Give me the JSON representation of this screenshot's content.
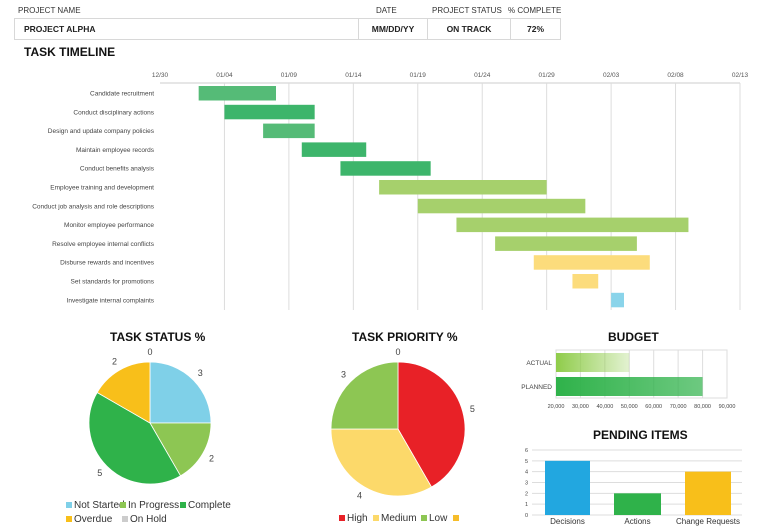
{
  "header": {
    "labels": {
      "name": "PROJECT NAME",
      "date": "DATE",
      "status": "PROJECT STATUS",
      "complete": "% COMPLETE"
    },
    "values": {
      "name": "PROJECT ALPHA",
      "date": "MM/DD/YY",
      "status": "ON TRACK",
      "complete": "72%"
    }
  },
  "chart_data": [
    {
      "type": "gantt",
      "title": "TASK TIMELINE",
      "x_ticks": [
        "12/30",
        "01/04",
        "01/09",
        "01/14",
        "01/19",
        "01/24",
        "01/29",
        "02/03",
        "02/08",
        "02/13"
      ],
      "x_range": [
        "12/30",
        "02/13"
      ],
      "grid": true,
      "tasks": [
        {
          "name": "Candidate recruitment",
          "start": "01/02",
          "end": "01/08",
          "color": "#55bb77"
        },
        {
          "name": "Conduct disciplinary actions",
          "start": "01/04",
          "end": "01/11",
          "color": "#3db56b"
        },
        {
          "name": "Design and update company policies",
          "start": "01/07",
          "end": "01/11",
          "color": "#55bb77"
        },
        {
          "name": "Maintain employee records",
          "start": "01/10",
          "end": "01/15",
          "color": "#3db56b"
        },
        {
          "name": "Conduct benefits analysis",
          "start": "01/13",
          "end": "01/20",
          "color": "#3db56b"
        },
        {
          "name": "Employee training and development",
          "start": "01/16",
          "end": "01/29",
          "color": "#a6d06c"
        },
        {
          "name": "Conduct job analysis and role descriptions",
          "start": "01/19",
          "end": "02/01",
          "color": "#a6d06c"
        },
        {
          "name": "Monitor employee performance",
          "start": "01/22",
          "end": "02/09",
          "color": "#a6d06c"
        },
        {
          "name": "Resolve employee internal conflicts",
          "start": "01/25",
          "end": "02/05",
          "color": "#a6d06c"
        },
        {
          "name": "Disburse rewards and incentives",
          "start": "01/28",
          "end": "02/06",
          "color": "#fcdc7c"
        },
        {
          "name": "Set standards for promotions",
          "start": "01/31",
          "end": "02/02",
          "color": "#fcdc7c"
        },
        {
          "name": "Investigate internal complaints",
          "start": "02/03",
          "end": "02/04",
          "color": "#8ad4ea"
        }
      ]
    },
    {
      "type": "pie",
      "title": "TASK STATUS %",
      "slices": [
        {
          "label": "Not Started",
          "value": 3,
          "color": "#7fd0e8"
        },
        {
          "label": "In Progress",
          "value": 2,
          "color": "#8dc653"
        },
        {
          "label": "Complete",
          "value": 5,
          "color": "#2fb24a"
        },
        {
          "label": "Overdue",
          "value": 2,
          "color": "#f8bf1a"
        },
        {
          "label": "On Hold",
          "value": 0,
          "color": "#cccccc"
        }
      ],
      "legend": "bottom"
    },
    {
      "type": "pie",
      "title": "TASK PRIORITY %",
      "slices": [
        {
          "label": "High",
          "value": 5,
          "color": "#e82127"
        },
        {
          "label": "Medium",
          "value": 4,
          "color": "#fcd96a"
        },
        {
          "label": "Low",
          "value": 3,
          "color": "#8dc653"
        },
        {
          "label": "",
          "value": 0,
          "color": "#f6bd2a"
        }
      ],
      "legend": "bottom"
    },
    {
      "type": "bar",
      "orientation": "horizontal",
      "title": "BUDGET",
      "categories": [
        "ACTUAL",
        "PLANNED"
      ],
      "values": [
        50000,
        80000
      ],
      "colors": [
        "#8fcc4a",
        "#2fb24a"
      ],
      "xlim": [
        20000,
        90000
      ],
      "x_ticks": [
        "20,000",
        "30,000",
        "40,000",
        "50,000",
        "60,000",
        "70,000",
        "80,000",
        "90,000"
      ]
    },
    {
      "type": "bar",
      "title": "PENDING ITEMS",
      "categories": [
        "Decisions",
        "Actions",
        "Change Requests"
      ],
      "values": [
        5,
        2,
        4
      ],
      "colors": [
        "#22a7e0",
        "#2fb24a",
        "#f8bf1a"
      ],
      "ylim": [
        0,
        6
      ],
      "y_ticks": [
        "0",
        "1",
        "2",
        "3",
        "4",
        "5",
        "6"
      ],
      "grid": true
    }
  ]
}
